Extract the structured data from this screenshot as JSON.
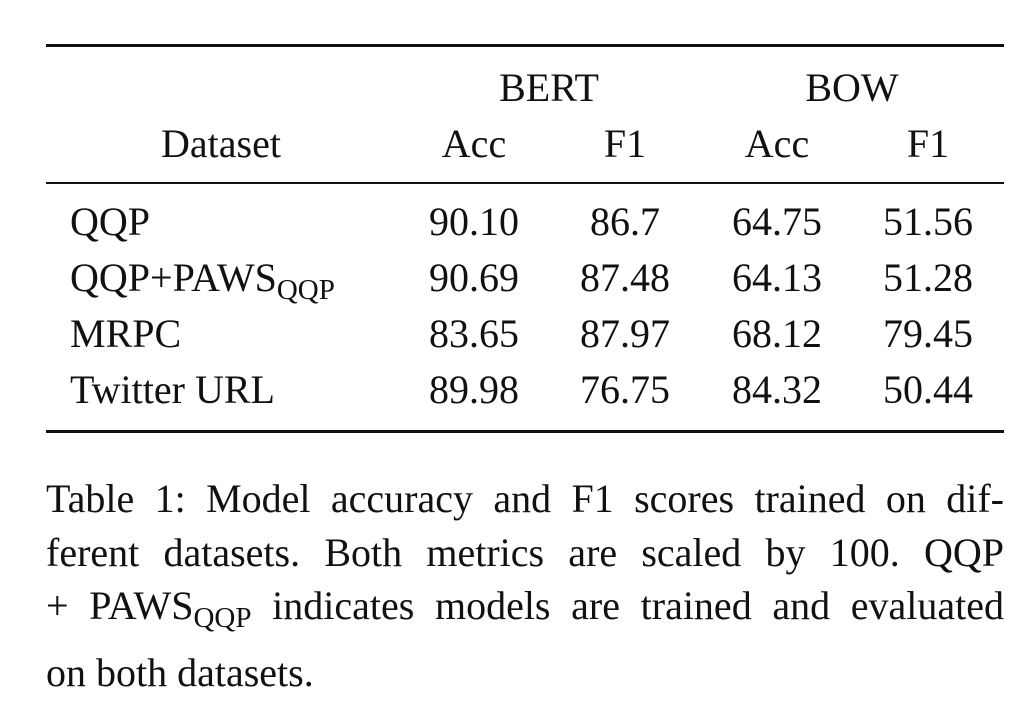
{
  "table": {
    "groups": [
      "BERT",
      "BOW"
    ],
    "columns": {
      "dataset": "Dataset",
      "bert_acc": "Acc",
      "bert_f1": "F1",
      "bow_acc": "Acc",
      "bow_f1": "F1"
    },
    "rows": [
      {
        "name": "QQP",
        "sub": "",
        "bert_acc": "90.10",
        "bert_f1": "86.7",
        "bow_acc": "64.75",
        "bow_f1": "51.56"
      },
      {
        "name": "QQP+PAWS",
        "sub": "QQP",
        "bert_acc": "90.69",
        "bert_f1": "87.48",
        "bow_acc": "64.13",
        "bow_f1": "51.28"
      },
      {
        "name": "MRPC",
        "sub": "",
        "bert_acc": "83.65",
        "bert_f1": "87.97",
        "bow_acc": "68.12",
        "bow_f1": "79.45"
      },
      {
        "name": "Twitter URL",
        "sub": "",
        "bert_acc": "89.98",
        "bert_f1": "76.75",
        "bow_acc": "84.32",
        "bow_f1": "50.44"
      }
    ]
  },
  "caption": {
    "line1": "Table 1: Model accuracy and F1 scores trained on dif-",
    "line2": "ferent datasets. Both metrics are scaled by 100. QQP",
    "line3_pre": "+ PAWS",
    "line3_sub": "QQP",
    "line3_post": " indicates models are trained and evaluated",
    "line4": "on both datasets."
  }
}
